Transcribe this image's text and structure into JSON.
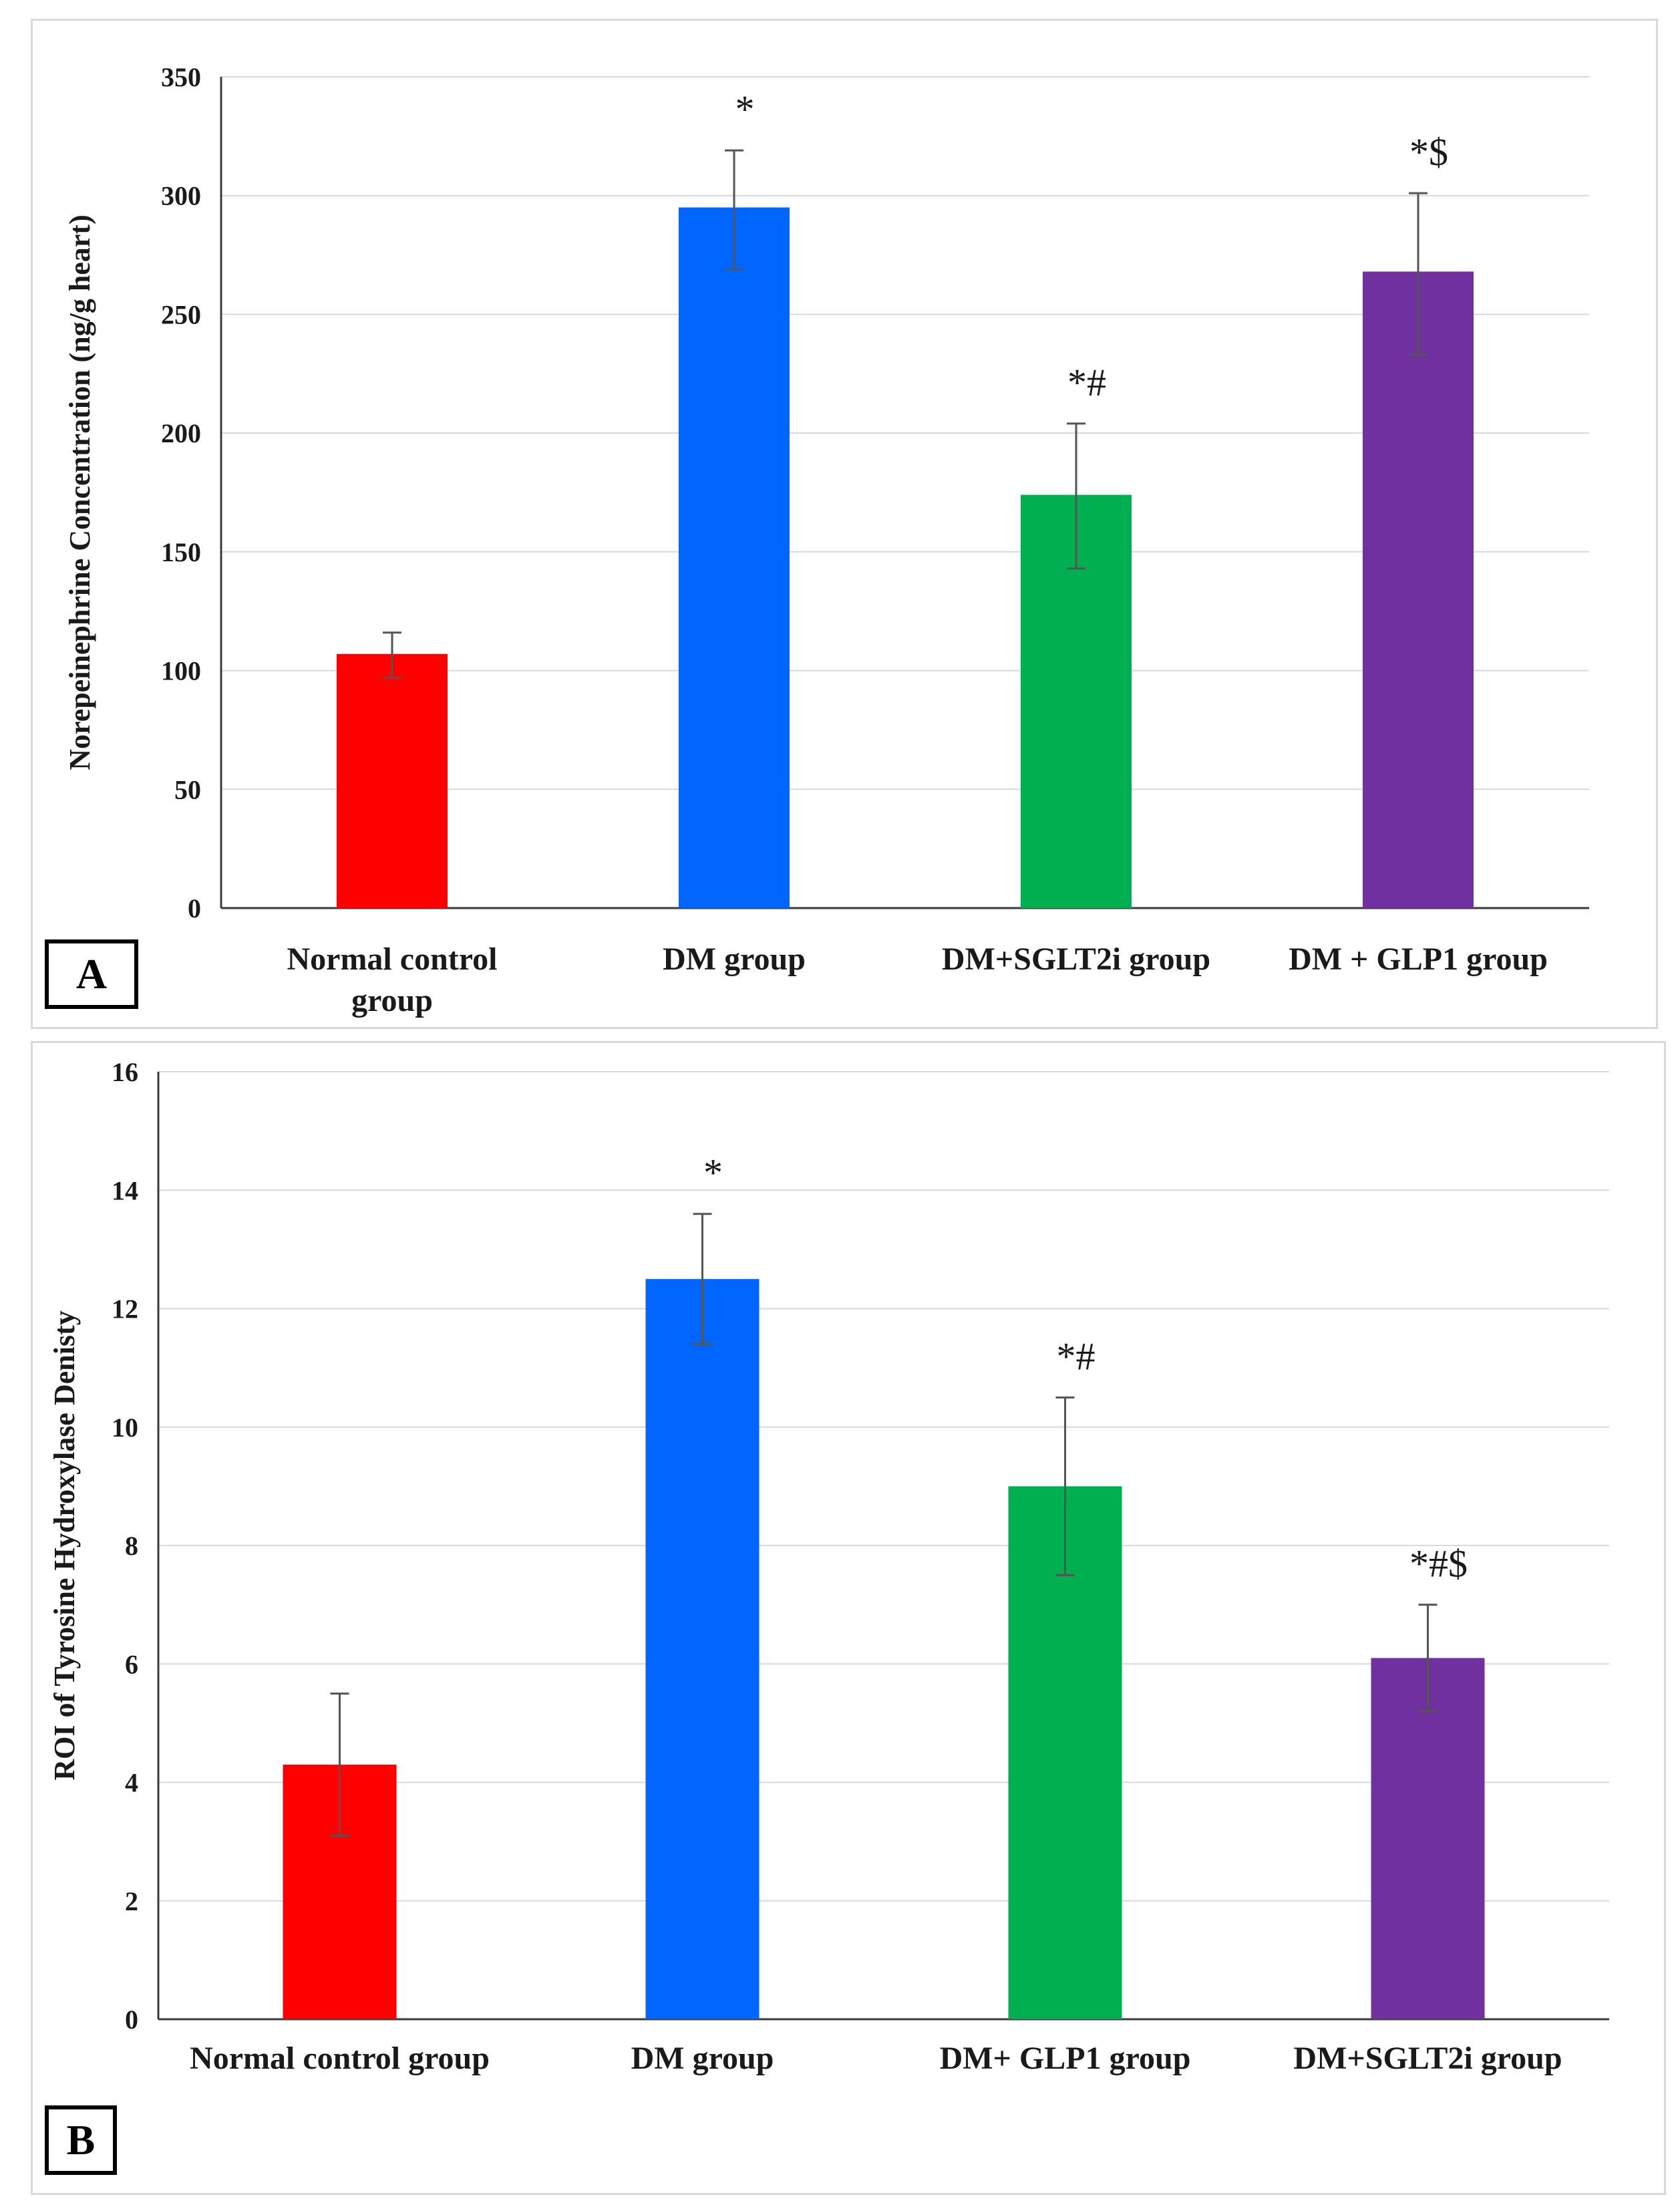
{
  "chart_data": [
    {
      "type": "bar",
      "panel_label": "A",
      "title": "",
      "xlabel": "",
      "ylabel": "Norepeinephrine Concentration (ng/g heart)",
      "ylim": [
        0,
        350
      ],
      "yticks": [
        "0",
        "50",
        "100",
        "150",
        "200",
        "250",
        "300",
        "350"
      ],
      "grid": true,
      "categories": [
        "Normal control group",
        "DM group",
        "DM+SGLT2i group",
        "DM + GLP1 group"
      ],
      "values": [
        107,
        295,
        174,
        268
      ],
      "error_upper": [
        116,
        319,
        204,
        301
      ],
      "error_lower": [
        97,
        269,
        143,
        233
      ],
      "colors": [
        "#ff0000",
        "#0066ff",
        "#00b050",
        "#7030a0"
      ],
      "annotations": [
        "",
        "*",
        "*#",
        "*$"
      ]
    },
    {
      "type": "bar",
      "panel_label": "B",
      "title": "",
      "xlabel": "",
      "ylabel": "ROI of Tyrosine Hydroxylase  Denisty",
      "ylim": [
        0,
        16
      ],
      "yticks": [
        "0",
        "2",
        "4",
        "6",
        "8",
        "10",
        "12",
        "14",
        "16"
      ],
      "grid": true,
      "categories": [
        "Normal control group",
        "DM group",
        "DM+ GLP1 group",
        "DM+SGLT2i group"
      ],
      "values": [
        4.3,
        12.5,
        9.0,
        6.1
      ],
      "error_upper": [
        5.5,
        13.6,
        10.5,
        7.0
      ],
      "error_lower": [
        3.1,
        11.4,
        7.5,
        5.2
      ],
      "colors": [
        "#ff0000",
        "#0066ff",
        "#00b050",
        "#7030a0"
      ],
      "annotations": [
        "",
        "*",
        "*#",
        "*#$"
      ]
    }
  ]
}
